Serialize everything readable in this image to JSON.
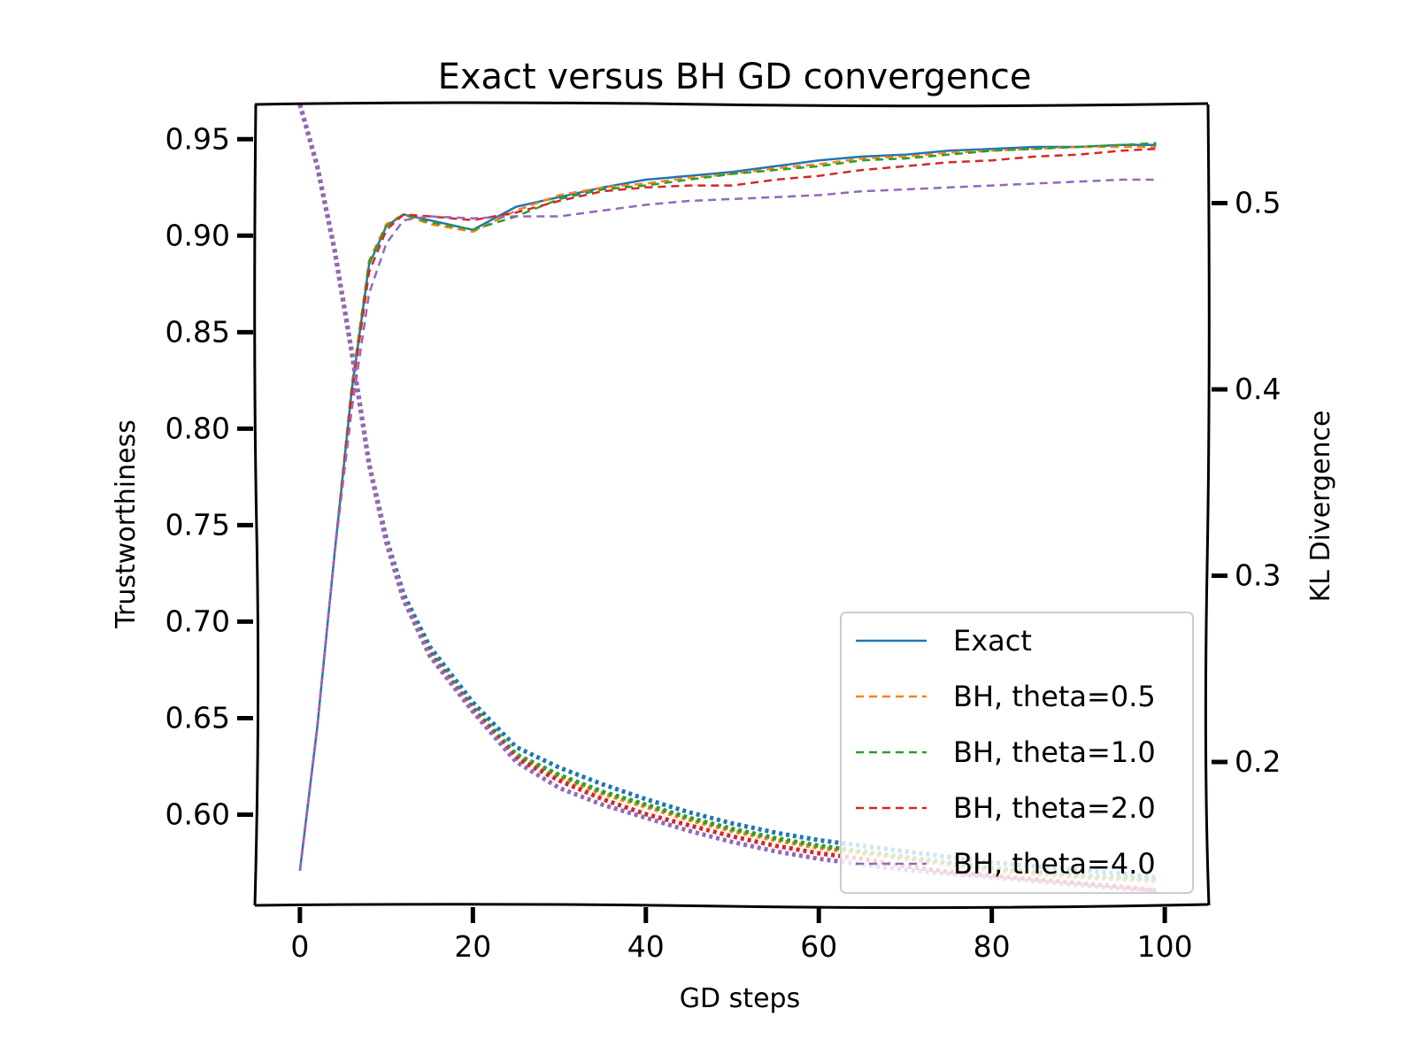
{
  "chart_data": {
    "type": "line",
    "title": "Exact versus BH GD convergence",
    "xlabel": "GD steps",
    "ylabel": "Trustworthiness",
    "y2label": "KL Divergence",
    "xlim": [
      -5,
      105
    ],
    "ylim": [
      0.553,
      0.968
    ],
    "y2lim": [
      0.123,
      0.553
    ],
    "xticks": [
      0,
      20,
      40,
      60,
      80,
      100
    ],
    "yticks": [
      0.6,
      0.65,
      0.7,
      0.75,
      0.8,
      0.85,
      0.9,
      0.95
    ],
    "y2ticks": [
      0.2,
      0.3,
      0.4,
      0.5
    ],
    "legend_position": "lower-right",
    "grid": false,
    "x": [
      0,
      2,
      4,
      6,
      8,
      10,
      12,
      15,
      20,
      25,
      30,
      35,
      40,
      45,
      50,
      55,
      60,
      65,
      70,
      75,
      80,
      85,
      90,
      95,
      99
    ],
    "series": [
      {
        "name": "Exact",
        "color": "#1f77b4",
        "style": "solid",
        "trustworthiness": [
          0.571,
          0.645,
          0.735,
          0.82,
          0.885,
          0.905,
          0.911,
          0.908,
          0.903,
          0.915,
          0.92,
          0.925,
          0.929,
          0.931,
          0.933,
          0.936,
          0.939,
          0.941,
          0.942,
          0.944,
          0.945,
          0.946,
          0.946,
          0.947,
          0.947
        ],
        "kl_divergence": [
          0.553,
          0.52,
          0.475,
          0.42,
          0.36,
          0.32,
          0.29,
          0.262,
          0.232,
          0.208,
          0.197,
          0.188,
          0.18,
          0.173,
          0.167,
          0.162,
          0.158,
          0.155,
          0.152,
          0.149,
          0.146,
          0.144,
          0.142,
          0.14,
          0.138
        ]
      },
      {
        "name": "BH, theta=0.5",
        "color": "#ff7f0e",
        "style": "dashed",
        "trustworthiness": [
          0.571,
          0.645,
          0.735,
          0.822,
          0.887,
          0.906,
          0.911,
          0.906,
          0.902,
          0.913,
          0.921,
          0.925,
          0.927,
          0.93,
          0.932,
          0.935,
          0.937,
          0.94,
          0.941,
          0.943,
          0.944,
          0.945,
          0.946,
          0.946,
          0.946
        ],
        "kl_divergence": [
          0.553,
          0.52,
          0.475,
          0.42,
          0.36,
          0.318,
          0.287,
          0.258,
          0.228,
          0.203,
          0.192,
          0.183,
          0.176,
          0.169,
          0.163,
          0.158,
          0.154,
          0.151,
          0.148,
          0.145,
          0.142,
          0.14,
          0.138,
          0.137,
          0.136
        ]
      },
      {
        "name": "BH, theta=1.0",
        "color": "#2ca02c",
        "style": "dashed",
        "trustworthiness": [
          0.571,
          0.645,
          0.735,
          0.822,
          0.886,
          0.905,
          0.911,
          0.907,
          0.903,
          0.91,
          0.919,
          0.924,
          0.926,
          0.929,
          0.932,
          0.934,
          0.936,
          0.939,
          0.94,
          0.942,
          0.944,
          0.945,
          0.946,
          0.947,
          0.948
        ],
        "kl_divergence": [
          0.553,
          0.52,
          0.475,
          0.42,
          0.36,
          0.318,
          0.287,
          0.259,
          0.229,
          0.204,
          0.193,
          0.184,
          0.177,
          0.17,
          0.164,
          0.159,
          0.155,
          0.152,
          0.149,
          0.146,
          0.143,
          0.141,
          0.139,
          0.138,
          0.137
        ]
      },
      {
        "name": "BH, theta=2.0",
        "color": "#d62728",
        "style": "dashed",
        "trustworthiness": [
          0.571,
          0.645,
          0.735,
          0.818,
          0.881,
          0.903,
          0.911,
          0.91,
          0.908,
          0.912,
          0.918,
          0.923,
          0.925,
          0.926,
          0.926,
          0.929,
          0.931,
          0.934,
          0.936,
          0.938,
          0.939,
          0.941,
          0.942,
          0.944,
          0.945
        ],
        "kl_divergence": [
          0.553,
          0.52,
          0.475,
          0.42,
          0.36,
          0.318,
          0.287,
          0.258,
          0.228,
          0.202,
          0.19,
          0.18,
          0.172,
          0.166,
          0.16,
          0.155,
          0.151,
          0.148,
          0.144,
          0.141,
          0.139,
          0.137,
          0.135,
          0.133,
          0.131
        ]
      },
      {
        "name": "BH, theta=4.0",
        "color": "#9467bd",
        "style": "dashed",
        "trustworthiness": [
          0.571,
          0.645,
          0.735,
          0.81,
          0.87,
          0.896,
          0.908,
          0.91,
          0.909,
          0.91,
          0.91,
          0.913,
          0.916,
          0.918,
          0.919,
          0.92,
          0.921,
          0.923,
          0.924,
          0.925,
          0.926,
          0.927,
          0.928,
          0.929,
          0.929
        ],
        "kl_divergence": [
          0.553,
          0.52,
          0.475,
          0.42,
          0.36,
          0.318,
          0.287,
          0.257,
          0.227,
          0.2,
          0.186,
          0.177,
          0.17,
          0.163,
          0.157,
          0.152,
          0.148,
          0.145,
          0.142,
          0.14,
          0.138,
          0.136,
          0.134,
          0.132,
          0.131
        ]
      }
    ]
  }
}
